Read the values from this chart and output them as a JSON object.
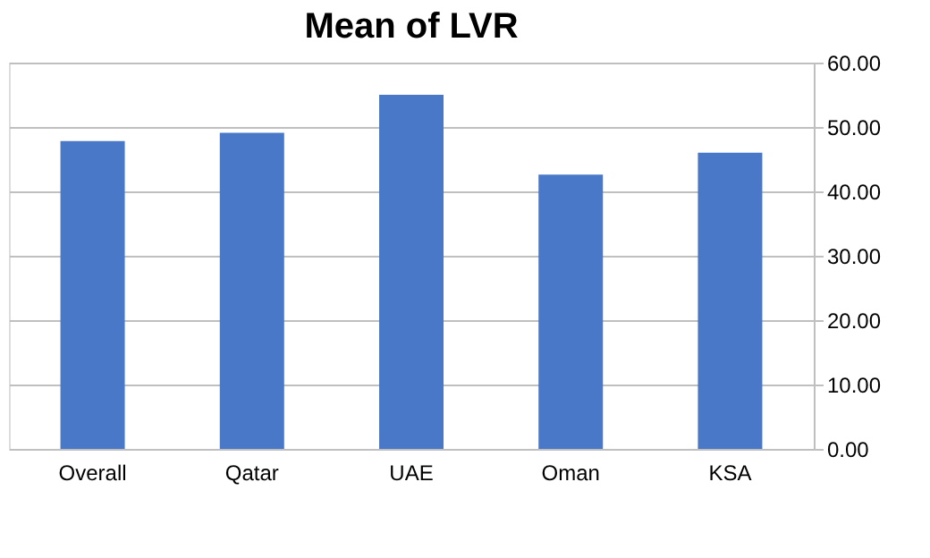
{
  "chart_data": {
    "type": "bar",
    "title": "Mean of LVR",
    "categories": [
      "Overall",
      "Qatar",
      "UAE",
      "Oman",
      "KSA"
    ],
    "values": [
      47.8,
      49.1,
      55.0,
      42.6,
      46.0
    ],
    "color": "#4a78c8",
    "ylim": [
      0,
      60
    ],
    "yticks": [
      {
        "value": 0,
        "label": "0.00"
      },
      {
        "value": 10,
        "label": "10.00"
      },
      {
        "value": 20,
        "label": "20.00"
      },
      {
        "value": 30,
        "label": "30.00"
      },
      {
        "value": 40,
        "label": "40.00"
      },
      {
        "value": 50,
        "label": "50.00"
      },
      {
        "value": 60,
        "label": "60.00"
      }
    ],
    "grid": "y"
  }
}
